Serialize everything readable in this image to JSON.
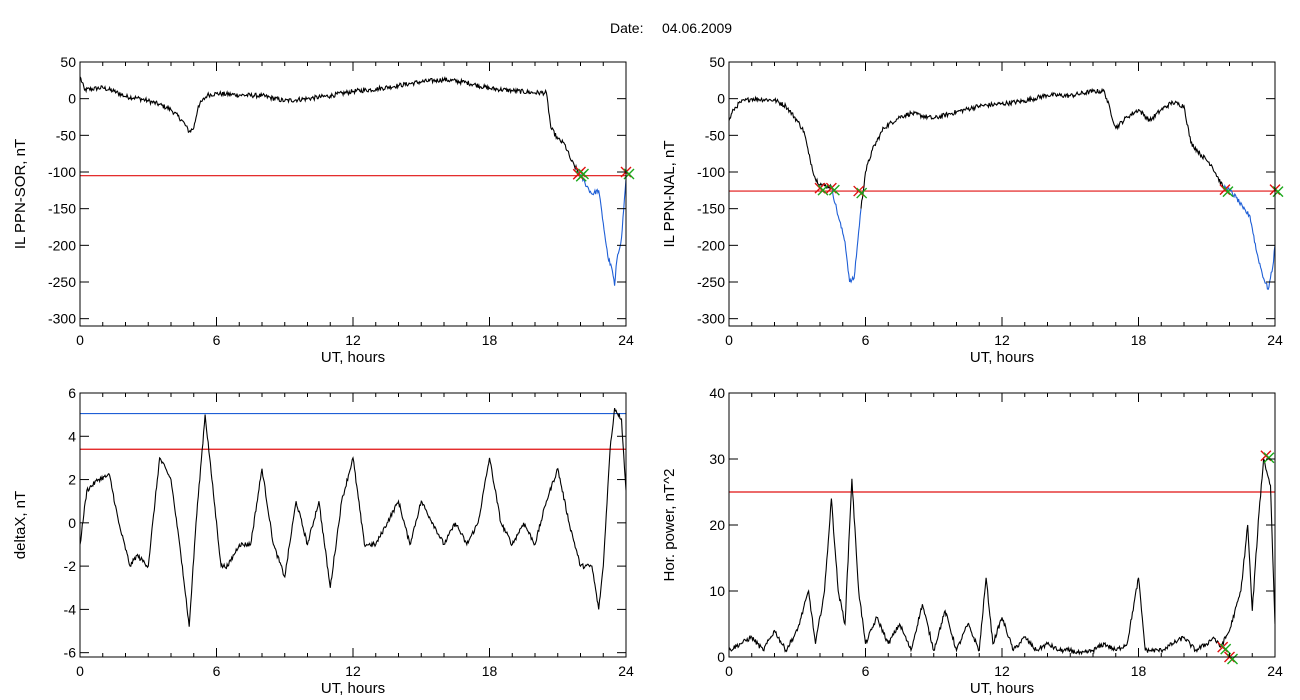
{
  "figure": {
    "date_label": "Date:",
    "date_value": "04.06.2009"
  },
  "colors": {
    "trace": "#000000",
    "substorm": "#1f5fd6",
    "threshold": "#e01010",
    "blue_line": "#1f5fd6",
    "marker_green": "#1aa81a"
  },
  "chart_data": [
    {
      "type": "line",
      "xlabel": "UT, hours",
      "ylabel": "IL PPN-SOR, nT",
      "xlim": [
        0,
        24
      ],
      "ylim": [
        -310,
        50
      ],
      "xticks": [
        0,
        6,
        12,
        18,
        24
      ],
      "yticks": [
        50,
        0,
        -50,
        -100,
        -150,
        -200,
        -250,
        -300
      ],
      "grid": false,
      "threshold": -105,
      "series": [
        {
          "values": [
            [
              0,
              30
            ],
            [
              0.2,
              12
            ],
            [
              1,
              15
            ],
            [
              1.5,
              10
            ],
            [
              2,
              3
            ],
            [
              2.5,
              1
            ],
            [
              3,
              -3
            ],
            [
              3.5,
              -8
            ],
            [
              4,
              -15
            ],
            [
              4.5,
              -30
            ],
            [
              4.8,
              -45
            ],
            [
              5.0,
              -40
            ],
            [
              5.2,
              -10
            ],
            [
              5.6,
              5
            ],
            [
              6,
              7
            ],
            [
              7,
              5
            ],
            [
              8,
              4
            ],
            [
              9,
              -3
            ],
            [
              10,
              0
            ],
            [
              11,
              4
            ],
            [
              12,
              10
            ],
            [
              13,
              13
            ],
            [
              14,
              18
            ],
            [
              15,
              23
            ],
            [
              16,
              26
            ],
            [
              17,
              22
            ],
            [
              18,
              14
            ],
            [
              19,
              11
            ],
            [
              20,
              8
            ],
            [
              20.5,
              8
            ],
            [
              20.7,
              -40
            ],
            [
              21,
              -55
            ],
            [
              21.3,
              -62
            ],
            [
              21.6,
              -85
            ],
            [
              21.9,
              -100
            ]
          ]
        },
        {
          "values": [
            [
              21.9,
              -100
            ],
            [
              22.2,
              -115
            ],
            [
              22.5,
              -130
            ],
            [
              22.8,
              -125
            ],
            [
              23.0,
              -170
            ],
            [
              23.2,
              -215
            ],
            [
              23.4,
              -235
            ],
            [
              23.5,
              -255
            ],
            [
              23.6,
              -220
            ],
            [
              23.8,
              -190
            ],
            [
              24,
              -110
            ]
          ]
        }
      ],
      "markers": [
        [
          21.9,
          -103
        ],
        [
          22.0,
          -100
        ],
        [
          24,
          -100
        ]
      ]
    },
    {
      "type": "line",
      "xlabel": "UT, hours",
      "ylabel": "IL PPN-NAL, nT",
      "xlim": [
        0,
        24
      ],
      "ylim": [
        -310,
        50
      ],
      "xticks": [
        0,
        6,
        12,
        18,
        24
      ],
      "yticks": [
        50,
        0,
        -50,
        -100,
        -150,
        -200,
        -250,
        -300
      ],
      "grid": false,
      "threshold": -126,
      "series": [
        {
          "values": [
            [
              0,
              -30
            ],
            [
              0.2,
              -15
            ],
            [
              0.5,
              -5
            ],
            [
              1,
              0
            ],
            [
              2,
              -2
            ],
            [
              2.5,
              -10
            ],
            [
              3,
              -30
            ],
            [
              3.3,
              -45
            ],
            [
              3.5,
              -75
            ],
            [
              3.8,
              -110
            ],
            [
              4.1,
              -118
            ],
            [
              4.5,
              -120
            ]
          ]
        },
        {
          "values": [
            [
              4.5,
              -120
            ],
            [
              4.8,
              -160
            ],
            [
              5.1,
              -195
            ],
            [
              5.3,
              -250
            ],
            [
              5.5,
              -245
            ],
            [
              5.8,
              -150
            ]
          ]
        },
        {
          "values": [
            [
              5.8,
              -150
            ],
            [
              6,
              -100
            ],
            [
              6.3,
              -70
            ],
            [
              6.8,
              -40
            ],
            [
              7.5,
              -25
            ],
            [
              8,
              -20
            ],
            [
              9,
              -27
            ],
            [
              10,
              -18
            ],
            [
              11,
              -10
            ],
            [
              12,
              -7
            ],
            [
              13,
              -3
            ],
            [
              14,
              5
            ],
            [
              15,
              4
            ],
            [
              16,
              10
            ],
            [
              16.5,
              10
            ],
            [
              17,
              -40
            ],
            [
              17.5,
              -25
            ],
            [
              18,
              -15
            ],
            [
              18.5,
              -30
            ],
            [
              19,
              -15
            ],
            [
              19.5,
              -5
            ],
            [
              20,
              -10
            ],
            [
              20.3,
              -60
            ],
            [
              20.7,
              -75
            ],
            [
              21.2,
              -90
            ],
            [
              21.7,
              -120
            ]
          ]
        },
        {
          "values": [
            [
              21.7,
              -120
            ],
            [
              22,
              -125
            ],
            [
              22.3,
              -135
            ],
            [
              22.6,
              -150
            ],
            [
              22.9,
              -160
            ],
            [
              23.2,
              -210
            ],
            [
              23.5,
              -245
            ],
            [
              23.7,
              -260
            ],
            [
              23.9,
              -230
            ],
            [
              24,
              -200
            ]
          ]
        }
      ],
      "markers": [
        [
          4.0,
          -122
        ],
        [
          4.5,
          -122
        ],
        [
          5.7,
          -126
        ],
        [
          21.8,
          -124
        ],
        [
          24,
          -124
        ]
      ]
    },
    {
      "type": "line",
      "xlabel": "UT, hours",
      "ylabel": "deltaX, nT",
      "xlim": [
        0,
        24
      ],
      "ylim": [
        -6.2,
        6
      ],
      "xticks": [
        0,
        6,
        12,
        18,
        24
      ],
      "yticks": [
        6,
        4,
        2,
        0,
        -2,
        -4,
        -6
      ],
      "grid": false,
      "thresholds": [
        {
          "value": 3.4,
          "color": "#e01010"
        },
        {
          "value": 5.05,
          "color": "#1f5fd6"
        }
      ],
      "series": [
        {
          "values": [
            [
              0,
              -1
            ],
            [
              0.3,
              1.5
            ],
            [
              0.8,
              2
            ],
            [
              1.3,
              2.2
            ],
            [
              1.7,
              0
            ],
            [
              2.2,
              -2
            ],
            [
              2.5,
              -1.5
            ],
            [
              3,
              -2
            ],
            [
              3.5,
              3
            ],
            [
              4,
              2
            ],
            [
              4.5,
              -2
            ],
            [
              4.8,
              -4.8
            ],
            [
              5.1,
              0
            ],
            [
              5.5,
              5
            ],
            [
              5.8,
              2
            ],
            [
              6.2,
              -2
            ],
            [
              6.5,
              -2
            ],
            [
              7,
              -1
            ],
            [
              7.5,
              -1
            ],
            [
              8,
              2.5
            ],
            [
              8.5,
              -1
            ],
            [
              9,
              -2.5
            ],
            [
              9.5,
              1
            ],
            [
              10,
              -1
            ],
            [
              10.5,
              1
            ],
            [
              11,
              -3
            ],
            [
              11.5,
              1
            ],
            [
              12,
              3
            ],
            [
              12.5,
              -1
            ],
            [
              13,
              -1
            ],
            [
              13.5,
              0
            ],
            [
              14,
              1
            ],
            [
              14.5,
              -1
            ],
            [
              15,
              1
            ],
            [
              15.5,
              0
            ],
            [
              16,
              -1
            ],
            [
              16.5,
              0
            ],
            [
              17,
              -1
            ],
            [
              17.5,
              0
            ],
            [
              18,
              3
            ],
            [
              18.5,
              0
            ],
            [
              19,
              -1
            ],
            [
              19.5,
              0
            ],
            [
              20,
              -1
            ],
            [
              20.5,
              1
            ],
            [
              21,
              2.5
            ],
            [
              21.5,
              0
            ],
            [
              22,
              -2
            ],
            [
              22.5,
              -2
            ],
            [
              22.8,
              -4
            ],
            [
              23,
              -2
            ],
            [
              23.3,
              3.4
            ],
            [
              23.5,
              5.3
            ],
            [
              23.8,
              4.8
            ],
            [
              24,
              1.5
            ]
          ]
        }
      ]
    },
    {
      "type": "line",
      "xlabel": "UT, hours",
      "ylabel": "Hor. power, nT^2",
      "xlim": [
        0,
        24
      ],
      "ylim": [
        0,
        40
      ],
      "xticks": [
        0,
        6,
        12,
        18,
        24
      ],
      "yticks": [
        40,
        30,
        20,
        10,
        0
      ],
      "grid": false,
      "threshold": 25,
      "series": [
        {
          "values": [
            [
              0,
              1
            ],
            [
              0.5,
              2
            ],
            [
              1,
              3
            ],
            [
              1.5,
              1
            ],
            [
              2,
              4
            ],
            [
              2.5,
              1
            ],
            [
              3,
              4
            ],
            [
              3.5,
              10
            ],
            [
              3.8,
              2
            ],
            [
              4.2,
              10
            ],
            [
              4.5,
              24
            ],
            [
              4.8,
              10
            ],
            [
              5.1,
              5
            ],
            [
              5.4,
              27
            ],
            [
              5.7,
              10
            ],
            [
              6,
              2
            ],
            [
              6.5,
              6
            ],
            [
              7,
              2
            ],
            [
              7.5,
              5
            ],
            [
              8,
              1
            ],
            [
              8.5,
              8
            ],
            [
              9,
              1
            ],
            [
              9.5,
              7
            ],
            [
              10,
              1
            ],
            [
              10.5,
              5
            ],
            [
              11,
              1
            ],
            [
              11.3,
              12
            ],
            [
              11.6,
              2
            ],
            [
              12,
              6
            ],
            [
              12.5,
              1
            ],
            [
              13,
              3
            ],
            [
              13.5,
              1
            ],
            [
              14,
              2
            ],
            [
              14.5,
              1
            ],
            [
              15,
              1
            ],
            [
              15.5,
              0.5
            ],
            [
              16,
              1
            ],
            [
              16.5,
              2
            ],
            [
              17,
              1
            ],
            [
              17.5,
              2
            ],
            [
              18,
              12
            ],
            [
              18.3,
              1
            ],
            [
              19,
              1
            ],
            [
              19.5,
              2
            ],
            [
              20,
              3
            ],
            [
              20.5,
              1
            ],
            [
              21,
              2
            ],
            [
              21.3,
              3
            ],
            [
              21.6,
              1.5
            ],
            [
              22,
              4
            ],
            [
              22.5,
              10
            ],
            [
              22.8,
              20
            ],
            [
              23,
              7
            ],
            [
              23.3,
              22
            ],
            [
              23.5,
              30
            ],
            [
              23.8,
              26
            ],
            [
              24,
              5
            ]
          ]
        }
      ],
      "markers": [
        [
          21.7,
          1.5
        ],
        [
          22.0,
          0
        ],
        [
          23.6,
          30.5
        ]
      ]
    }
  ]
}
